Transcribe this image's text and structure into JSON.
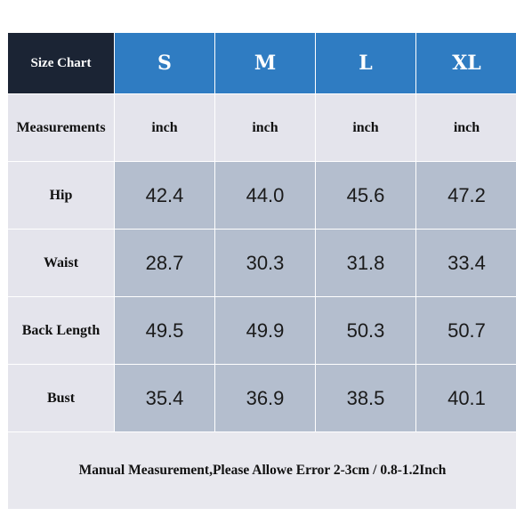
{
  "header": {
    "corner_label": "Size Chart",
    "sizes": [
      "S",
      "M",
      "L",
      "XL"
    ]
  },
  "units_row": {
    "label": "Measurements",
    "units": [
      "inch",
      "inch",
      "inch",
      "inch"
    ]
  },
  "rows": [
    {
      "label": "Hip",
      "values": [
        "42.4",
        "44.0",
        "45.6",
        "47.2"
      ]
    },
    {
      "label": "Waist",
      "values": [
        "28.7",
        "30.3",
        "31.8",
        "33.4"
      ]
    },
    {
      "label": "Back Length",
      "values": [
        "49.5",
        "49.9",
        "50.3",
        "50.7"
      ]
    },
    {
      "label": "Bust",
      "values": [
        "35.4",
        "36.9",
        "38.5",
        "40.1"
      ]
    }
  ],
  "footer_note": "Manual Measurement,Please Allowe Error 2-3cm / 0.8-1.2Inch",
  "colors": {
    "corner": "#1b2434",
    "size_header": "#2f7cc2",
    "label_cells": "#e4e4ec",
    "value_cells": "#b4bece"
  }
}
